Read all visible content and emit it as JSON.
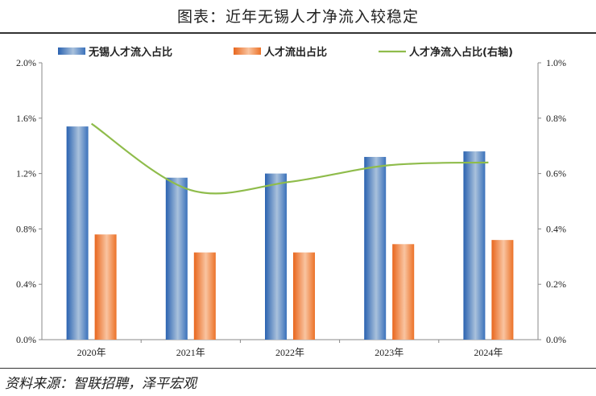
{
  "title": "图表：近年无锡人才净流入较稳定",
  "source": "资料来源：智联招聘，泽平宏观",
  "chart_data": {
    "type": "bar+line",
    "categories": [
      "2020年",
      "2021年",
      "2022年",
      "2023年",
      "2024年"
    ],
    "series": [
      {
        "name": "无锡人才流入占比",
        "type": "bar",
        "axis": "left",
        "color": "#3a78c0",
        "values": [
          1.54,
          1.17,
          1.2,
          1.32,
          1.36
        ]
      },
      {
        "name": "人才流出占比",
        "type": "bar",
        "axis": "left",
        "color": "#ef7d2e",
        "values": [
          0.76,
          0.63,
          0.63,
          0.69,
          0.72
        ]
      },
      {
        "name": "人才净流入占比(右轴)",
        "type": "line",
        "axis": "right",
        "color": "#8fbc4b",
        "values": [
          0.78,
          0.54,
          0.57,
          0.63,
          0.64
        ]
      }
    ],
    "left_axis": {
      "ylim": [
        0,
        2.0
      ],
      "ticks": [
        "0.0%",
        "0.4%",
        "0.8%",
        "1.2%",
        "1.6%",
        "2.0%"
      ]
    },
    "right_axis": {
      "ylim": [
        0,
        1.0
      ],
      "ticks": [
        "0.0%",
        "0.2%",
        "0.4%",
        "0.6%",
        "0.8%",
        "1.0%"
      ]
    },
    "legend": "top",
    "grid": false
  }
}
